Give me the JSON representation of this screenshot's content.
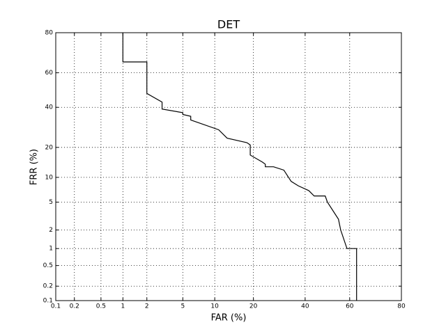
{
  "chart_data": {
    "type": "line",
    "title": "DET",
    "xlabel": "FAR (%)",
    "ylabel": "FRR (%)",
    "xscale": "probit",
    "yscale": "probit",
    "grid": true,
    "xlim": [
      0.1,
      80
    ],
    "ylim": [
      0.1,
      80
    ],
    "xticks": [
      0.1,
      0.2,
      0.5,
      1,
      2,
      5,
      10,
      20,
      40,
      60,
      80
    ],
    "yticks": [
      0.1,
      0.2,
      0.5,
      1,
      2,
      5,
      10,
      20,
      40,
      60,
      80
    ],
    "series": [
      {
        "color": "#000000",
        "x": [
          1,
          1,
          2,
          2,
          3,
          3,
          5,
          5,
          6,
          6,
          10.8,
          12.7,
          18,
          19,
          19,
          23,
          24,
          24,
          27,
          31,
          34,
          37,
          41.6,
          44,
          49,
          50,
          55,
          56,
          58.8,
          63,
          63
        ],
        "values": [
          80,
          66,
          66,
          48,
          43,
          39,
          37,
          36,
          35,
          33,
          28,
          24,
          22,
          21,
          17,
          14.5,
          13.8,
          13,
          13,
          12,
          9,
          8,
          7,
          6,
          6,
          5,
          2.9,
          2,
          1,
          1,
          0.1
        ]
      }
    ]
  }
}
